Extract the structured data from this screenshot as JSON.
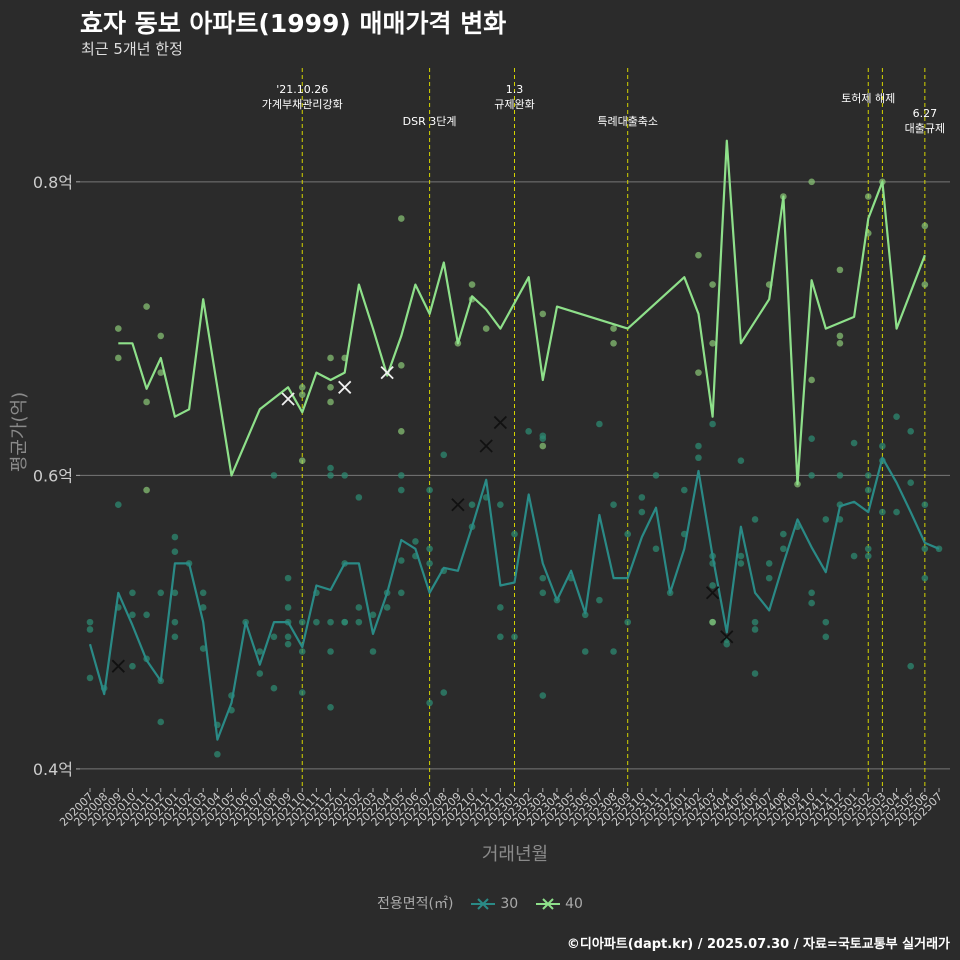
{
  "title": "효자 동보 아파트(1999) 매매가격 변화",
  "subtitle": "최근 5개년 한정",
  "caption": "©디아파트(dapt.kr) / 2025.07.30 / 자료=국토교통부 실거래가",
  "colors": {
    "background": "#2b2b2b",
    "grid": "#777777",
    "event_line": "#d4d400",
    "series_30": "#2a8a86",
    "series_40": "#8ee08a",
    "scatter_30": "#2e8a72",
    "scatter_40": "#8cc978"
  },
  "chart_data": {
    "type": "line",
    "xlabel": "거래년월",
    "ylabel": "평균가(억)",
    "ylim": [
      0.387,
      0.883
    ],
    "yticks": [
      0.4,
      0.6,
      0.8
    ],
    "ytick_labels": [
      "0.4억",
      "0.6억",
      "0.8억"
    ],
    "x_categories": [
      "202007",
      "202008",
      "202009",
      "202010",
      "202011",
      "202012",
      "202101",
      "202102",
      "202103",
      "202104",
      "202105",
      "202106",
      "202107",
      "202108",
      "202109",
      "202110",
      "202111",
      "202112",
      "202201",
      "202202",
      "202203",
      "202204",
      "202205",
      "202206",
      "202207",
      "202208",
      "202209",
      "202210",
      "202211",
      "202212",
      "202301",
      "202302",
      "202303",
      "202304",
      "202305",
      "202306",
      "202307",
      "202308",
      "202309",
      "202310",
      "202311",
      "202312",
      "202401",
      "202402",
      "202403",
      "202404",
      "202405",
      "202406",
      "202407",
      "202408",
      "202409",
      "202410",
      "202411",
      "202412",
      "202501",
      "202502",
      "202503",
      "202504",
      "202505",
      "202506",
      "202507"
    ],
    "legend_title": "전용면적(㎡)",
    "series": [
      {
        "name": "30",
        "color": "#2a8a86",
        "points": [
          [
            "202007",
            0.485
          ],
          [
            "202008",
            0.451
          ],
          [
            "202009",
            0.52
          ],
          [
            "202010",
            0.498
          ],
          [
            "202011",
            0.474
          ],
          [
            "202012",
            0.46
          ],
          [
            "202101",
            0.54
          ],
          [
            "202102",
            0.54
          ],
          [
            "202103",
            0.5
          ],
          [
            "202104",
            0.42
          ],
          [
            "202105",
            0.445
          ],
          [
            "202106",
            0.5
          ],
          [
            "202107",
            0.471
          ],
          [
            "202108",
            0.5
          ],
          [
            "202109",
            0.5
          ],
          [
            "202110",
            0.483
          ],
          [
            "202111",
            0.525
          ],
          [
            "202112",
            0.522
          ],
          [
            "202201",
            0.54
          ],
          [
            "202202",
            0.54
          ],
          [
            "202203",
            0.492
          ],
          [
            "202204",
            0.52
          ],
          [
            "202205",
            0.556
          ],
          [
            "202206",
            0.55
          ],
          [
            "202207",
            0.52
          ],
          [
            "202208",
            0.537
          ],
          [
            "202209",
            0.535
          ],
          [
            "202210",
            0.565
          ],
          [
            "202211",
            0.597
          ],
          [
            "202212",
            0.525
          ],
          [
            "202301",
            0.527
          ],
          [
            "202302",
            0.587
          ],
          [
            "202303",
            0.54
          ],
          [
            "202304",
            0.515
          ],
          [
            "202305",
            0.535
          ],
          [
            "202306",
            0.506
          ],
          [
            "202307",
            0.573
          ],
          [
            "202308",
            0.53
          ],
          [
            "202309",
            0.53
          ],
          [
            "202310",
            0.558
          ],
          [
            "202311",
            0.578
          ],
          [
            "202312",
            0.52
          ],
          [
            "202401",
            0.55
          ],
          [
            "202402",
            0.603
          ],
          [
            "202403",
            0.545
          ],
          [
            "202404",
            0.493
          ],
          [
            "202405",
            0.565
          ],
          [
            "202406",
            0.52
          ],
          [
            "202407",
            0.508
          ],
          [
            "202408",
            0.54
          ],
          [
            "202409",
            0.57
          ],
          [
            "202410",
            0.551
          ],
          [
            "202411",
            0.534
          ],
          [
            "202412",
            0.579
          ],
          [
            "202501",
            0.582
          ],
          [
            "202502",
            0.575
          ],
          [
            "202503",
            0.612
          ],
          [
            "202504",
            0.595
          ],
          [
            "202505",
            0.575
          ],
          [
            "202506",
            0.554
          ],
          [
            "202507",
            0.55
          ]
        ]
      },
      {
        "name": "40",
        "color": "#8ee08a",
        "points": [
          [
            "202009",
            0.69
          ],
          [
            "202010",
            0.69
          ],
          [
            "202011",
            0.659
          ],
          [
            "202012",
            0.68
          ],
          [
            "202101",
            0.64
          ],
          [
            "202102",
            0.645
          ],
          [
            "202103",
            0.72
          ],
          [
            "202105",
            0.6
          ],
          [
            "202107",
            0.645
          ],
          [
            "202109",
            0.66
          ],
          [
            "202110",
            0.643
          ],
          [
            "202111",
            0.67
          ],
          [
            "202112",
            0.665
          ],
          [
            "202201",
            0.67
          ],
          [
            "202202",
            0.73
          ],
          [
            "202203",
            0.7
          ],
          [
            "202204",
            0.668
          ],
          [
            "202205",
            0.695
          ],
          [
            "202206",
            0.73
          ],
          [
            "202207",
            0.71
          ],
          [
            "202208",
            0.745
          ],
          [
            "202209",
            0.69
          ],
          [
            "202210",
            0.722
          ],
          [
            "202211",
            0.713
          ],
          [
            "202212",
            0.7
          ],
          [
            "202302",
            0.735
          ],
          [
            "202303",
            0.665
          ],
          [
            "202304",
            0.715
          ],
          [
            "202309",
            0.7
          ],
          [
            "202401",
            0.735
          ],
          [
            "202402",
            0.71
          ],
          [
            "202403",
            0.64
          ],
          [
            "202404",
            0.828
          ],
          [
            "202405",
            0.69
          ],
          [
            "202407",
            0.72
          ],
          [
            "202408",
            0.79
          ],
          [
            "202409",
            0.594
          ],
          [
            "202410",
            0.733
          ],
          [
            "202411",
            0.7
          ],
          [
            "202501",
            0.708
          ],
          [
            "202502",
            0.775
          ],
          [
            "202503",
            0.8
          ],
          [
            "202504",
            0.7
          ],
          [
            "202506",
            0.75
          ]
        ]
      }
    ],
    "cancelled_30": [
      [
        "202009",
        0.47
      ],
      [
        "202209",
        0.58
      ],
      [
        "202211",
        0.62
      ],
      [
        "202212",
        0.636
      ],
      [
        "202403",
        0.52
      ],
      [
        "202404",
        0.49
      ]
    ],
    "cancelled_40": [
      [
        "202109",
        0.652
      ],
      [
        "202201",
        0.66
      ],
      [
        "202204",
        0.67
      ]
    ],
    "scatter_30": [
      [
        "202007",
        0.5
      ],
      [
        "202007",
        0.495
      ],
      [
        "202007",
        0.462
      ],
      [
        "202008",
        0.455
      ],
      [
        "202009",
        0.58
      ],
      [
        "202009",
        0.51
      ],
      [
        "202010",
        0.505
      ],
      [
        "202010",
        0.47
      ],
      [
        "202010",
        0.52
      ],
      [
        "202011",
        0.505
      ],
      [
        "202011",
        0.475
      ],
      [
        "202012",
        0.52
      ],
      [
        "202012",
        0.432
      ],
      [
        "202012",
        0.46
      ],
      [
        "202101",
        0.558
      ],
      [
        "202101",
        0.548
      ],
      [
        "202101",
        0.52
      ],
      [
        "202101",
        0.49
      ],
      [
        "202101",
        0.5
      ],
      [
        "202102",
        0.54
      ],
      [
        "202103",
        0.52
      ],
      [
        "202103",
        0.51
      ],
      [
        "202103",
        0.482
      ],
      [
        "202104",
        0.41
      ],
      [
        "202104",
        0.43
      ],
      [
        "202105",
        0.45
      ],
      [
        "202105",
        0.44
      ],
      [
        "202106",
        0.5
      ],
      [
        "202107",
        0.48
      ],
      [
        "202107",
        0.465
      ],
      [
        "202108",
        0.6
      ],
      [
        "202108",
        0.49
      ],
      [
        "202108",
        0.455
      ],
      [
        "202109",
        0.53
      ],
      [
        "202109",
        0.51
      ],
      [
        "202109",
        0.5
      ],
      [
        "202109",
        0.49
      ],
      [
        "202109",
        0.485
      ],
      [
        "202110",
        0.48
      ],
      [
        "202110",
        0.452
      ],
      [
        "202110",
        0.5
      ],
      [
        "202111",
        0.52
      ],
      [
        "202111",
        0.5
      ],
      [
        "202112",
        0.605
      ],
      [
        "202112",
        0.6
      ],
      [
        "202112",
        0.5
      ],
      [
        "202112",
        0.442
      ],
      [
        "202112",
        0.48
      ],
      [
        "202201",
        0.6
      ],
      [
        "202201",
        0.54
      ],
      [
        "202201",
        0.5
      ],
      [
        "202201",
        0.5
      ],
      [
        "202202",
        0.585
      ],
      [
        "202202",
        0.51
      ],
      [
        "202202",
        0.5
      ],
      [
        "202203",
        0.505
      ],
      [
        "202203",
        0.48
      ],
      [
        "202204",
        0.52
      ],
      [
        "202204",
        0.51
      ],
      [
        "202205",
        0.6
      ],
      [
        "202205",
        0.59
      ],
      [
        "202205",
        0.542
      ],
      [
        "202205",
        0.52
      ],
      [
        "202206",
        0.545
      ],
      [
        "202206",
        0.555
      ],
      [
        "202207",
        0.59
      ],
      [
        "202207",
        0.55
      ],
      [
        "202207",
        0.54
      ],
      [
        "202207",
        0.445
      ],
      [
        "202208",
        0.535
      ],
      [
        "202208",
        0.452
      ],
      [
        "202208",
        0.614
      ],
      [
        "202210",
        0.58
      ],
      [
        "202210",
        0.565
      ],
      [
        "202211",
        0.585
      ],
      [
        "202212",
        0.58
      ],
      [
        "202212",
        0.51
      ],
      [
        "202212",
        0.49
      ],
      [
        "202301",
        0.56
      ],
      [
        "202301",
        0.49
      ],
      [
        "202302",
        0.63
      ],
      [
        "202303",
        0.627
      ],
      [
        "202303",
        0.625
      ],
      [
        "202303",
        0.53
      ],
      [
        "202303",
        0.45
      ],
      [
        "202303",
        0.52
      ],
      [
        "202304",
        0.515
      ],
      [
        "202305",
        0.53
      ],
      [
        "202306",
        0.505
      ],
      [
        "202306",
        0.48
      ],
      [
        "202307",
        0.635
      ],
      [
        "202307",
        0.515
      ],
      [
        "202308",
        0.58
      ],
      [
        "202308",
        0.48
      ],
      [
        "202309",
        0.56
      ],
      [
        "202309",
        0.5
      ],
      [
        "202310",
        0.585
      ],
      [
        "202310",
        0.575
      ],
      [
        "202311",
        0.6
      ],
      [
        "202311",
        0.55
      ],
      [
        "202312",
        0.52
      ],
      [
        "202401",
        0.59
      ],
      [
        "202401",
        0.56
      ],
      [
        "202402",
        0.62
      ],
      [
        "202402",
        0.612
      ],
      [
        "202403",
        0.635
      ],
      [
        "202403",
        0.545
      ],
      [
        "202403",
        0.54
      ],
      [
        "202403",
        0.525
      ],
      [
        "202403",
        0.5
      ],
      [
        "202404",
        0.488
      ],
      [
        "202404",
        0.485
      ],
      [
        "202405",
        0.61
      ],
      [
        "202405",
        0.545
      ],
      [
        "202405",
        0.54
      ],
      [
        "202406",
        0.57
      ],
      [
        "202406",
        0.5
      ],
      [
        "202406",
        0.495
      ],
      [
        "202406",
        0.465
      ],
      [
        "202407",
        0.54
      ],
      [
        "202407",
        0.53
      ],
      [
        "202408",
        0.55
      ],
      [
        "202408",
        0.56
      ],
      [
        "202409",
        0.565
      ],
      [
        "202410",
        0.625
      ],
      [
        "202410",
        0.6
      ],
      [
        "202410",
        0.52
      ],
      [
        "202410",
        0.513
      ],
      [
        "202411",
        0.57
      ],
      [
        "202411",
        0.49
      ],
      [
        "202411",
        0.5
      ],
      [
        "202412",
        0.6
      ],
      [
        "202412",
        0.58
      ],
      [
        "202412",
        0.57
      ],
      [
        "202501",
        0.622
      ],
      [
        "202501",
        0.545
      ],
      [
        "202502",
        0.59
      ],
      [
        "202502",
        0.55
      ],
      [
        "202502",
        0.545
      ],
      [
        "202502",
        0.6
      ],
      [
        "202503",
        0.61
      ],
      [
        "202503",
        0.62
      ],
      [
        "202503",
        0.575
      ],
      [
        "202504",
        0.575
      ],
      [
        "202504",
        0.64
      ],
      [
        "202505",
        0.63
      ],
      [
        "202505",
        0.595
      ],
      [
        "202505",
        0.47
      ],
      [
        "202506",
        0.58
      ],
      [
        "202506",
        0.53
      ],
      [
        "202506",
        0.55
      ],
      [
        "202507",
        0.55
      ]
    ],
    "scatter_40": [
      [
        "202009",
        0.7
      ],
      [
        "202009",
        0.68
      ],
      [
        "202011",
        0.715
      ],
      [
        "202011",
        0.65
      ],
      [
        "202011",
        0.59
      ],
      [
        "202012",
        0.695
      ],
      [
        "202012",
        0.67
      ],
      [
        "202110",
        0.66
      ],
      [
        "202110",
        0.655
      ],
      [
        "202110",
        0.61
      ],
      [
        "202112",
        0.68
      ],
      [
        "202112",
        0.66
      ],
      [
        "202112",
        0.65
      ],
      [
        "202201",
        0.68
      ],
      [
        "202205",
        0.775
      ],
      [
        "202205",
        0.675
      ],
      [
        "202205",
        0.63
      ],
      [
        "202209",
        0.69
      ],
      [
        "202210",
        0.73
      ],
      [
        "202210",
        0.72
      ],
      [
        "202211",
        0.7
      ],
      [
        "202303",
        0.71
      ],
      [
        "202303",
        0.62
      ],
      [
        "202308",
        0.7
      ],
      [
        "202308",
        0.69
      ],
      [
        "202402",
        0.75
      ],
      [
        "202402",
        0.67
      ],
      [
        "202403",
        0.73
      ],
      [
        "202403",
        0.69
      ],
      [
        "202407",
        0.73
      ],
      [
        "202408",
        0.79
      ],
      [
        "202409",
        0.594
      ],
      [
        "202410",
        0.8
      ],
      [
        "202410",
        0.665
      ],
      [
        "202412",
        0.74
      ],
      [
        "202412",
        0.695
      ],
      [
        "202412",
        0.69
      ],
      [
        "202502",
        0.79
      ],
      [
        "202502",
        0.765
      ],
      [
        "202503",
        0.8
      ],
      [
        "202506",
        0.77
      ],
      [
        "202506",
        0.73
      ],
      [
        "202403",
        0.5
      ]
    ],
    "events": [
      {
        "x": "202110",
        "label": "'21.10.26\n가계부채관리강화",
        "pos": "high"
      },
      {
        "x": "202207",
        "label": "DSR 3단계",
        "pos": "low"
      },
      {
        "x": "202301",
        "label": "1.3\n규제완화",
        "pos": "high"
      },
      {
        "x": "202309",
        "label": "특례대출축소",
        "pos": "low"
      },
      {
        "x": "202502",
        "label": "토허제 해제",
        "pos": "mid"
      },
      {
        "x": "202503",
        "label": "",
        "pos": "mid"
      },
      {
        "x": "202506",
        "label": "6.27\n대출규제",
        "pos": "low"
      }
    ]
  }
}
